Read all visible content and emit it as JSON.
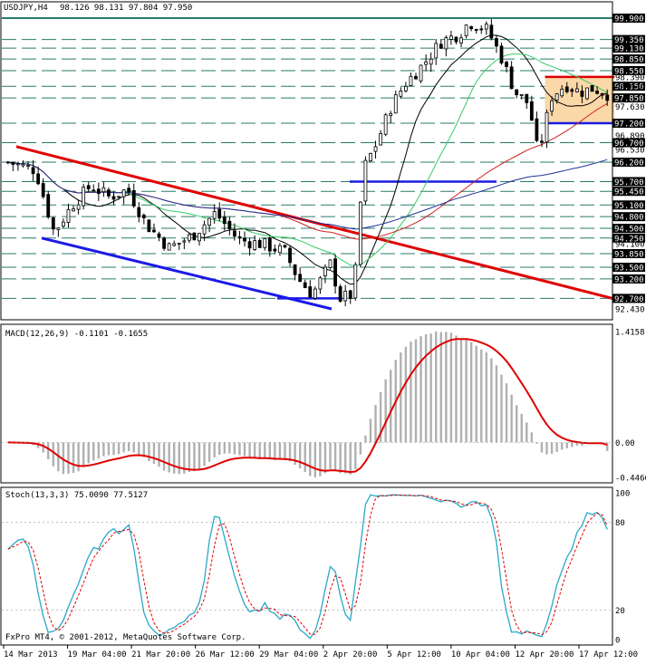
{
  "header": {
    "symbol_tf": "USDJPY,H4",
    "ohlc": "98.126 98.131 97.804 97.950"
  },
  "copyright": "FxPro MT4, © 2001-2012, MetaQuotes Software Corp.",
  "colors": {
    "background": "#ffffff",
    "grid_dash": "#2a7a6a",
    "candle": "#000000",
    "price_box": "#000000",
    "red_line": "#e00000",
    "blue_line": "#1a1ae6",
    "ma_black": "#000000",
    "ma_green": "#33cc66",
    "ma_red": "#cc2222",
    "ma_navy": "#223399",
    "histogram": "#b0b0b0",
    "macd_signal": "#e00000",
    "stoch_main": "#2aa8c8",
    "stoch_signal": "#e00000",
    "range_fill": "#fbd8a8"
  },
  "chart_data": [
    {
      "type": "candlestick",
      "name": "main",
      "title": "USDJPY,H4",
      "ylim": [
        92.43,
        99.9
      ],
      "price_labels": [
        "99.900",
        "99.350",
        "99.130",
        "98.850",
        "98.550",
        "98.390",
        "98.150",
        "98.130",
        "97.850",
        "97.630",
        "97.200",
        "96.890",
        "96.700",
        "96.530",
        "96.200",
        "95.700",
        "95.450",
        "95.100",
        "94.800",
        "94.500",
        "94.250",
        "94.100",
        "93.850",
        "93.500",
        "93.200",
        "92.700",
        "92.430"
      ],
      "dashed_levels": [
        99.9,
        99.35,
        99.13,
        98.85,
        98.55,
        98.15,
        97.85,
        97.2,
        96.7,
        96.2,
        95.7,
        95.45,
        95.1,
        94.8,
        94.5,
        94.25,
        93.85,
        93.5,
        93.2,
        92.7
      ],
      "current_price": 97.95,
      "x_labels": [
        "14 Mar 2013",
        "19 Mar 04:00",
        "21 Mar 20:00",
        "26 Mar 12:00",
        "29 Mar 04:00",
        "2 Apr 20:00",
        "5 Apr 12:00",
        "10 Apr 04:00",
        "12 Apr 20:00",
        "17 Apr 12:00"
      ],
      "bar_count": 120
    },
    {
      "type": "macd",
      "name": "MACD",
      "label": "MACD(12,26,9) -0.1101 -0.1655",
      "params": "12,26,9",
      "main_value": -0.1101,
      "signal_value": -0.1655,
      "ylim": [
        -0.4466,
        1.4158
      ],
      "axis_labels": [
        "1.4158",
        "0.00",
        "-0.4466"
      ]
    },
    {
      "type": "stochastic",
      "name": "Stoch",
      "label": "Stoch(13,3,3) 75.0090 77.5127",
      "params": "13,3,3",
      "main_value": 75.009,
      "signal_value": 77.5127,
      "ylim": [
        0,
        100
      ],
      "axis_labels": [
        "100",
        "80",
        "20",
        "0"
      ]
    }
  ]
}
